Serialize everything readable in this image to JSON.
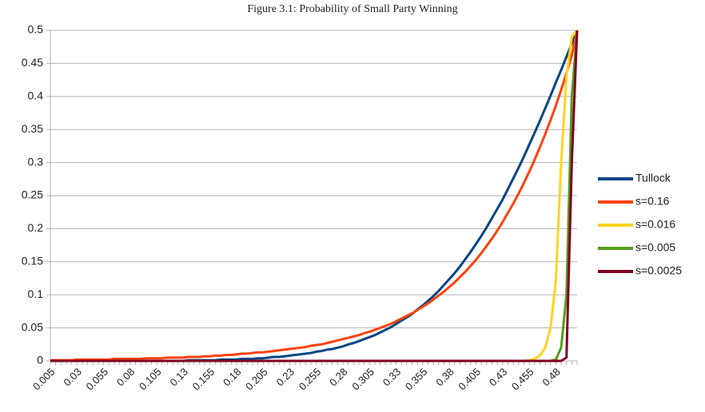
{
  "chart_data": {
    "type": "line",
    "title": "Figure 3.1: Probability of Small Party Winning",
    "categories": [
      "0.005",
      null,
      null,
      null,
      null,
      "0.03",
      null,
      null,
      null,
      null,
      "0.055",
      null,
      null,
      null,
      null,
      "0.08",
      null,
      null,
      null,
      null,
      "0.105",
      null,
      null,
      null,
      null,
      "0.13",
      null,
      null,
      null,
      null,
      "0.155",
      null,
      null,
      null,
      null,
      "0.18",
      null,
      null,
      null,
      null,
      "0.205",
      null,
      null,
      null,
      null,
      "0.23",
      null,
      null,
      null,
      null,
      "0.255",
      null,
      null,
      null,
      null,
      "0.28",
      null,
      null,
      null,
      null,
      "0.305",
      null,
      null,
      null,
      null,
      "0.33",
      null,
      null,
      null,
      null,
      "0.355",
      null,
      null,
      null,
      null,
      "0.38",
      null,
      null,
      null,
      null,
      "0.405",
      null,
      null,
      null,
      null,
      "0.43",
      null,
      null,
      null,
      null,
      "0.455",
      null,
      null,
      null,
      null,
      "0.48",
      null,
      null,
      null,
      null
    ],
    "series": [
      {
        "name": "Tullock",
        "color": "#004586",
        "values": [
          0,
          0,
          0,
          0,
          0,
          0,
          0,
          0,
          0,
          0,
          0,
          0,
          0,
          0,
          0,
          0,
          0,
          0,
          0,
          0,
          0,
          0,
          0,
          0,
          0,
          0,
          0.001,
          0.001,
          0.001,
          0.001,
          0.001,
          0.001,
          0.002,
          0.002,
          0.002,
          0.002,
          0.003,
          0.003,
          0.003,
          0.004,
          0.004,
          0.005,
          0.006,
          0.006,
          0.007,
          0.008,
          0.009,
          0.01,
          0.011,
          0.012,
          0.014,
          0.015,
          0.017,
          0.018,
          0.02,
          0.022,
          0.025,
          0.027,
          0.03,
          0.033,
          0.036,
          0.039,
          0.043,
          0.047,
          0.051,
          0.056,
          0.061,
          0.066,
          0.071,
          0.078,
          0.084,
          0.091,
          0.098,
          0.106,
          0.115,
          0.124,
          0.133,
          0.143,
          0.154,
          0.165,
          0.177,
          0.189,
          0.202,
          0.216,
          0.23,
          0.244,
          0.26,
          0.276,
          0.292,
          0.309,
          0.327,
          0.345,
          0.363,
          0.382,
          0.401,
          0.421,
          0.44,
          0.46,
          0.48,
          0.5
        ]
      },
      {
        "name": "s=0.16",
        "color": "#ff420e",
        "values": [
          0.001,
          0.001,
          0.001,
          0.001,
          0.001,
          0.002,
          0.002,
          0.002,
          0.002,
          0.002,
          0.002,
          0.002,
          0.003,
          0.003,
          0.003,
          0.003,
          0.003,
          0.003,
          0.004,
          0.004,
          0.004,
          0.004,
          0.005,
          0.005,
          0.005,
          0.005,
          0.006,
          0.006,
          0.006,
          0.007,
          0.007,
          0.008,
          0.008,
          0.009,
          0.009,
          0.01,
          0.011,
          0.011,
          0.012,
          0.013,
          0.013,
          0.014,
          0.015,
          0.016,
          0.017,
          0.018,
          0.019,
          0.02,
          0.021,
          0.023,
          0.024,
          0.025,
          0.027,
          0.029,
          0.031,
          0.033,
          0.035,
          0.037,
          0.039,
          0.042,
          0.044,
          0.047,
          0.05,
          0.053,
          0.056,
          0.06,
          0.064,
          0.068,
          0.072,
          0.077,
          0.082,
          0.087,
          0.093,
          0.099,
          0.105,
          0.112,
          0.119,
          0.127,
          0.135,
          0.144,
          0.153,
          0.163,
          0.174,
          0.185,
          0.197,
          0.21,
          0.224,
          0.238,
          0.253,
          0.269,
          0.286,
          0.304,
          0.323,
          0.343,
          0.364,
          0.386,
          0.41,
          0.435,
          0.462,
          0.5
        ]
      },
      {
        "name": "s=0.016",
        "color": "#ffd320",
        "values": [
          0,
          0,
          0,
          0,
          0,
          0,
          0,
          0,
          0,
          0,
          0,
          0,
          0,
          0,
          0,
          0,
          0,
          0,
          0,
          0,
          0,
          0,
          0,
          0,
          0,
          0,
          0,
          0,
          0,
          0,
          0,
          0,
          0,
          0,
          0,
          0,
          0,
          0,
          0,
          0,
          0,
          0,
          0,
          0,
          0,
          0,
          0,
          0,
          0,
          0,
          0,
          0,
          0,
          0,
          0,
          0,
          0,
          0,
          0,
          0,
          0,
          0,
          0,
          0,
          0,
          0,
          0,
          0,
          0,
          0,
          0,
          0,
          0,
          0,
          0,
          0,
          0,
          0,
          0,
          0,
          0,
          0,
          0,
          0,
          0,
          0,
          0,
          0,
          0,
          0,
          0.001,
          0.003,
          0.008,
          0.02,
          0.05,
          0.12,
          0.3,
          0.43,
          0.49,
          0.5
        ]
      },
      {
        "name": "s=0.005",
        "color": "#579d1c",
        "values": [
          0,
          0,
          0,
          0,
          0,
          0,
          0,
          0,
          0,
          0,
          0,
          0,
          0,
          0,
          0,
          0,
          0,
          0,
          0,
          0,
          0,
          0,
          0,
          0,
          0,
          0,
          0,
          0,
          0,
          0,
          0,
          0,
          0,
          0,
          0,
          0,
          0,
          0,
          0,
          0,
          0,
          0,
          0,
          0,
          0,
          0,
          0,
          0,
          0,
          0,
          0,
          0,
          0,
          0,
          0,
          0,
          0,
          0,
          0,
          0,
          0,
          0,
          0,
          0,
          0,
          0,
          0,
          0,
          0,
          0,
          0,
          0,
          0,
          0,
          0,
          0,
          0,
          0,
          0,
          0,
          0,
          0,
          0,
          0,
          0,
          0,
          0,
          0,
          0,
          0,
          0,
          0,
          0,
          0,
          0,
          0.002,
          0.02,
          0.1,
          0.4,
          0.5
        ]
      },
      {
        "name": "s=0.0025",
        "color": "#7e0021",
        "values": [
          0,
          0,
          0,
          0,
          0,
          0,
          0,
          0,
          0,
          0,
          0,
          0,
          0,
          0,
          0,
          0,
          0,
          0,
          0,
          0,
          0,
          0,
          0,
          0,
          0,
          0,
          0,
          0,
          0,
          0,
          0,
          0,
          0,
          0,
          0,
          0,
          0,
          0,
          0,
          0,
          0,
          0,
          0,
          0,
          0,
          0,
          0,
          0,
          0,
          0,
          0,
          0,
          0,
          0,
          0,
          0,
          0,
          0,
          0,
          0,
          0,
          0,
          0,
          0,
          0,
          0,
          0,
          0,
          0,
          0,
          0,
          0,
          0,
          0,
          0,
          0,
          0,
          0,
          0,
          0,
          0,
          0,
          0,
          0,
          0,
          0,
          0,
          0,
          0,
          0,
          0,
          0,
          0,
          0,
          0,
          0,
          0,
          0.005,
          0.3,
          0.5
        ]
      }
    ],
    "ylim": [
      0,
      0.5
    ],
    "yticks": [
      0,
      0.05,
      0.1,
      0.15,
      0.2,
      0.25,
      0.3,
      0.35,
      0.4,
      0.45,
      0.5
    ],
    "grid": true,
    "legend": "right"
  }
}
